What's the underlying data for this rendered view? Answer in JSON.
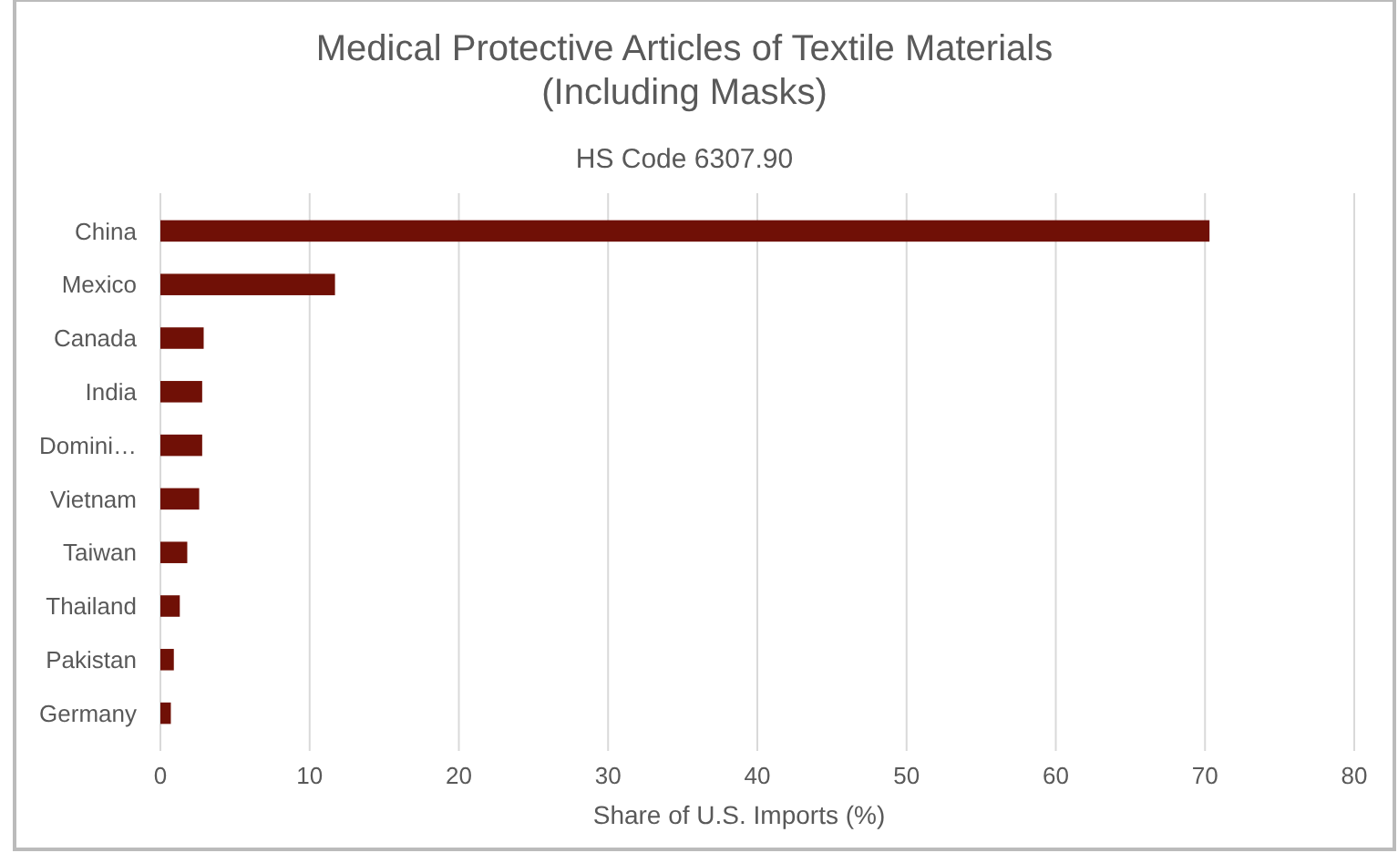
{
  "chart_data": {
    "type": "bar",
    "orientation": "horizontal",
    "title": "Medical Protective Articles of Textile Materials\n(Including Masks)",
    "subtitle": "HS Code 6307.90",
    "xlabel": "Share of U.S. Imports (%)",
    "categories": [
      "China",
      "Mexico",
      "Canada",
      "India",
      "Domini…",
      "Vietnam",
      "Taiwan",
      "Thailand",
      "Pakistan",
      "Germany"
    ],
    "values": [
      70.3,
      11.7,
      2.9,
      2.8,
      2.8,
      2.6,
      1.8,
      1.3,
      0.9,
      0.7
    ],
    "color": "#701006",
    "xlim": [
      0,
      80
    ],
    "xticks": [
      0,
      10,
      20,
      30,
      40,
      50,
      60,
      70,
      80
    ],
    "grid": "x"
  }
}
